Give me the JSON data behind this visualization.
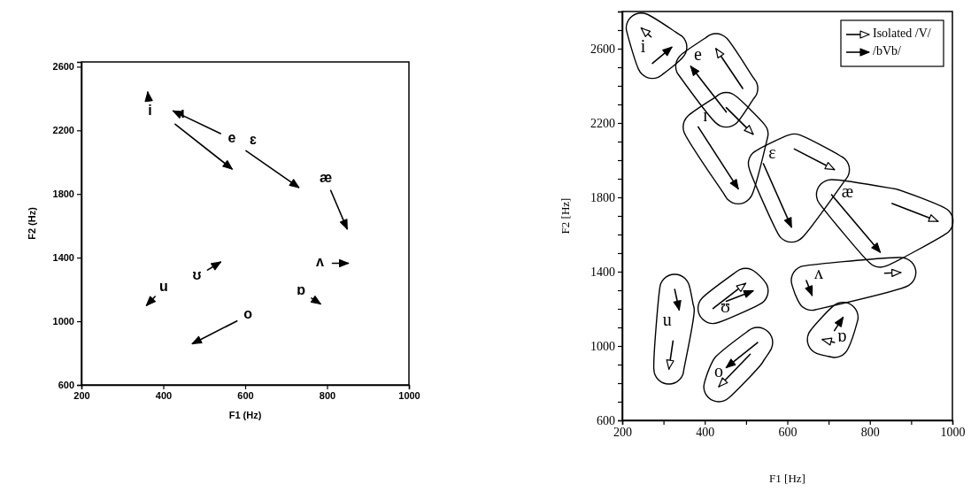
{
  "chart_data": [
    {
      "type": "line",
      "xlabel": "F1 (Hz)",
      "ylabel": "F2 (Hz)",
      "xlim": [
        200,
        1000
      ],
      "ylim": [
        600,
        2630
      ],
      "xticks": [
        200,
        400,
        600,
        800,
        1000
      ],
      "yticks": [
        600,
        1000,
        1400,
        1800,
        2200,
        2600
      ],
      "grid": false,
      "legend": false,
      "line_style": "solid",
      "series": [
        {
          "color": "#000000",
          "x": [
            364,
            362,
            null,
            540,
            424,
            null,
            429,
            568,
            null,
            602,
            731,
            null,
            809,
            849,
            null,
            813,
            852,
            null,
            508,
            540,
            null,
            380,
            359,
            null,
            762,
            784,
            null,
            580,
            471
          ],
          "values": [
            2395,
            2440,
            null,
            2180,
            2322,
            null,
            2239,
            1957,
            null,
            2072,
            1841,
            null,
            1822,
            1581,
            null,
            1365,
            1365,
            null,
            1322,
            1372,
            null,
            1156,
            1100,
            null,
            1146,
            1109,
            null,
            1002,
            859
          ]
        }
      ],
      "annotations": [
        "i",
        "e",
        "ι",
        "ɛ",
        "æ",
        "ʌ",
        "ʊ",
        "u",
        "ɒ",
        "o"
      ]
    },
    {
      "type": "line",
      "xlabel": "F1 [Hz]",
      "ylabel": "F2 [Hz]",
      "xlim": [
        200,
        1000
      ],
      "ylim": [
        600,
        2800
      ],
      "xticks": [
        200,
        {
          "value": 300,
          "label": null
        },
        400,
        {
          "value": 500,
          "label": null
        },
        600,
        {
          "value": 700,
          "label": null
        },
        800,
        {
          "value": 900,
          "label": null
        },
        1000
      ],
      "yticks": [
        600,
        {
          "value": 700,
          "label": null
        },
        {
          "value": 800,
          "label": null
        },
        {
          "value": 900,
          "label": null
        },
        1000,
        {
          "value": 1100,
          "label": null
        },
        {
          "value": 1200,
          "label": null
        },
        {
          "value": 1300,
          "label": null
        },
        1400,
        {
          "value": 1500,
          "label": null
        },
        {
          "value": 1600,
          "label": null
        },
        {
          "value": 1700,
          "label": null
        },
        1800,
        {
          "value": 1900,
          "label": null
        },
        {
          "value": 2000,
          "label": null
        },
        {
          "value": 2100,
          "label": null
        },
        2200,
        {
          "value": 2300,
          "label": null
        },
        {
          "value": 2400,
          "label": null
        },
        {
          "value": 2500,
          "label": null
        },
        2600,
        {
          "value": 2700,
          "label": null
        },
        {
          "value": 2800,
          "label": null
        }
      ],
      "grid": false,
      "legend": "top right",
      "line_style": "solid",
      "series": [
        {
          "name": "Isolated /V/",
          "color": "#000000",
          "x": [
            270,
            246,
            null,
            492,
            427,
            null,
            452,
            517,
            null,
            617,
            714,
            null,
            854,
            965,
            null,
            836,
            875,
            null,
            420,
            499,
            null,
            323,
            313,
            null,
            510,
            434,
            null,
            714,
            685
          ],
          "values": [
            2663,
            2711,
            null,
            2386,
            2600,
            null,
            2283,
            2140,
            null,
            2060,
            1949,
            null,
            1767,
            1671,
            null,
            1392,
            1395,
            null,
            1202,
            1337,
            null,
            1027,
            876,
            null,
            956,
            781,
            null,
            1019,
            1035
          ]
        },
        {
          "name": "/bVb/",
          "color": "#000000",
          "x": [
            273,
            320,
            null,
            452,
            366,
            null,
            384,
            481,
            null,
            542,
            610,
            null,
            707,
            825,
            null,
            646,
            660,
            null,
            452,
            517,
            null,
            327,
            338,
            null,
            528,
            452,
            null,
            714,
            735
          ],
          "values": [
            2521,
            2608,
            null,
            2259,
            2505,
            null,
            2179,
            1846,
            null,
            1981,
            1640,
            null,
            1814,
            1505,
            null,
            1352,
            1273,
            null,
            1241,
            1297,
            null,
            1305,
            1194,
            null,
            1019,
            884,
            null,
            1083,
            1154
          ]
        }
      ],
      "annotations": [
        "i",
        "e",
        "ɪ",
        "ɛ",
        "æ",
        "ʌ",
        "ʊ",
        "u",
        "o",
        "ɒ"
      ]
    }
  ]
}
